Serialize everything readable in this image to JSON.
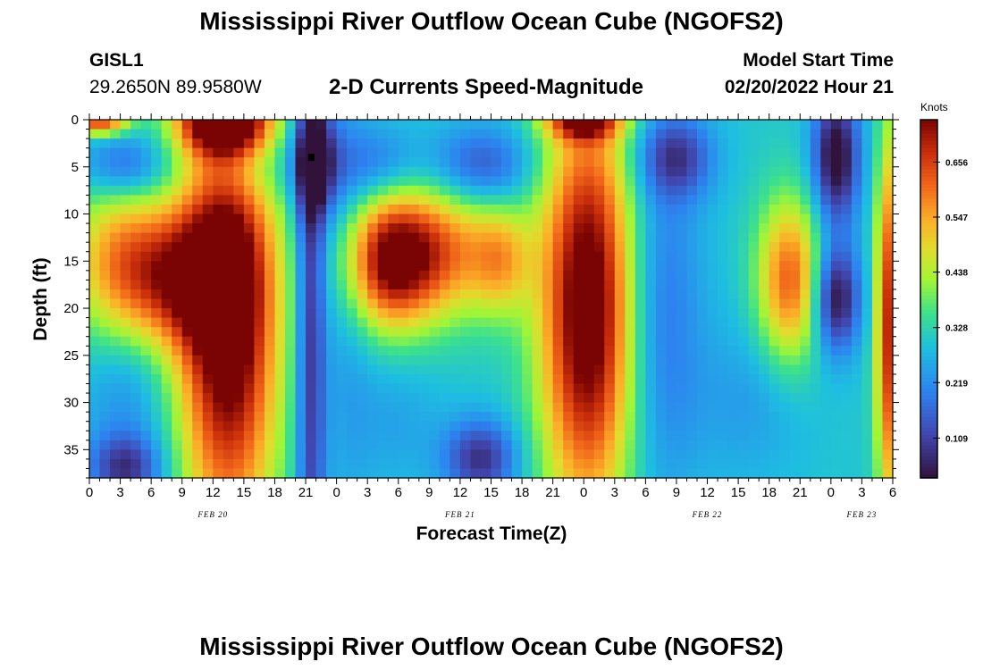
{
  "header": {
    "title": "Mississippi River Outflow Ocean Cube (NGOFS2)",
    "station_id": "GISL1",
    "station_coords": "29.2650N  89.9580W",
    "subtitle": "2-D Currents Speed-Magnitude",
    "model_start_label": "Model Start Time",
    "model_start_value": "02/20/2022 Hour 21"
  },
  "footer": {
    "title": "Mississippi River Outflow Ocean Cube (NGOFS2)"
  },
  "chart_data": {
    "type": "heatmap",
    "xlabel": "Forecast Time(Z)",
    "ylabel": "Depth (ft)",
    "x_tick_labels": [
      "0",
      "3",
      "6",
      "9",
      "12",
      "15",
      "18",
      "21",
      "0",
      "3",
      "6",
      "9",
      "12",
      "15",
      "18",
      "21",
      "0",
      "3",
      "6",
      "9",
      "12",
      "15",
      "18",
      "21",
      "0",
      "3",
      "6"
    ],
    "date_labels": [
      {
        "label": "FEB 20",
        "hour": 12
      },
      {
        "label": "FEB 21",
        "hour": 36
      },
      {
        "label": "FEB 22",
        "hour": 60
      },
      {
        "label": "FEB 23",
        "hour": 75
      }
    ],
    "x_range_hours": [
      0,
      78
    ],
    "y_ticks": [
      0,
      5,
      10,
      15,
      20,
      25,
      30,
      35
    ],
    "ylim": [
      0,
      38
    ],
    "colorbar": {
      "title": "Knots",
      "ticks": [
        0.109,
        0.219,
        0.328,
        0.438,
        0.547,
        0.656
      ],
      "range": [
        0.03,
        0.74
      ]
    },
    "features_note_hidden": [],
    "speed_field_blobs": [
      {
        "hour": 13.5,
        "depth": 21,
        "sx": 3.4,
        "sy": 16,
        "v": 0.52
      },
      {
        "hour": 3,
        "depth": 15,
        "sx": 3.5,
        "sy": 6,
        "v": 0.24
      },
      {
        "hour": 9,
        "depth": 17,
        "sx": 4,
        "sy": 5,
        "v": 0.3
      },
      {
        "hour": 29,
        "depth": 15,
        "sx": 3,
        "sy": 5,
        "v": 0.38
      },
      {
        "hour": 34,
        "depth": 14,
        "sx": 4,
        "sy": 5,
        "v": 0.28
      },
      {
        "hour": 40,
        "depth": 15,
        "sx": 2,
        "sy": 4,
        "v": 0.18
      },
      {
        "hour": 48.5,
        "depth": 20,
        "sx": 3.3,
        "sy": 15,
        "v": 0.52
      },
      {
        "hour": 68,
        "depth": 17,
        "sx": 2.2,
        "sy": 6,
        "v": 0.32
      },
      {
        "hour": 77.8,
        "depth": 22,
        "sx": 1,
        "sy": 14,
        "v": 0.4
      },
      {
        "hour": 13,
        "depth": 0,
        "sx": 3,
        "sy": 2.5,
        "v": 0.5
      },
      {
        "hour": 1,
        "depth": 0,
        "sx": 2,
        "sy": 1.5,
        "v": 0.38
      },
      {
        "hour": 48,
        "depth": 0,
        "sx": 2.5,
        "sy": 1.5,
        "v": 0.35
      },
      {
        "hour": 21.5,
        "depth": 20,
        "sx": 1,
        "sy": 30,
        "v": -0.22
      },
      {
        "hour": 22,
        "depth": 4.5,
        "sx": 1.6,
        "sy": 4,
        "v": -0.24
      },
      {
        "hour": 3.5,
        "depth": 5,
        "sx": 3,
        "sy": 2.5,
        "v": -0.16
      },
      {
        "hour": 16,
        "depth": 5,
        "sx": 3,
        "sy": 3,
        "v": -0.08
      },
      {
        "hour": 28,
        "depth": 5,
        "sx": 3,
        "sy": 3,
        "v": -0.12
      },
      {
        "hour": 38,
        "depth": 5,
        "sx": 3.5,
        "sy": 3,
        "v": -0.17
      },
      {
        "hour": 57,
        "depth": 4,
        "sx": 2.5,
        "sy": 3,
        "v": -0.18
      },
      {
        "hour": 72.5,
        "depth": 4,
        "sx": 1.6,
        "sy": 5,
        "v": -0.3
      },
      {
        "hour": 72.5,
        "depth": 19,
        "sx": 1.6,
        "sy": 4,
        "v": -0.28
      },
      {
        "hour": 55,
        "depth": 20,
        "sx": 3,
        "sy": 14,
        "v": -0.14
      },
      {
        "hour": 38,
        "depth": 36,
        "sx": 2.5,
        "sy": 3,
        "v": -0.22
      },
      {
        "hour": 3.5,
        "depth": 37,
        "sx": 2.5,
        "sy": 2.5,
        "v": -0.2
      },
      {
        "hour": 3.5,
        "depth": 29,
        "sx": 3,
        "sy": 6,
        "v": -0.08
      },
      {
        "hour": 30,
        "depth": 32,
        "sx": 3,
        "sy": 5,
        "v": -0.05
      },
      {
        "hour": 25,
        "depth": 20,
        "sx": 2,
        "sy": 18,
        "v": -0.06
      },
      {
        "hour": 64,
        "depth": 30,
        "sx": 4,
        "sy": 6,
        "v": -0.06
      },
      {
        "hour": 1,
        "depth": 2,
        "sx": 2,
        "sy": 1,
        "v": -0.08
      }
    ],
    "speed_base": 0.3
  }
}
